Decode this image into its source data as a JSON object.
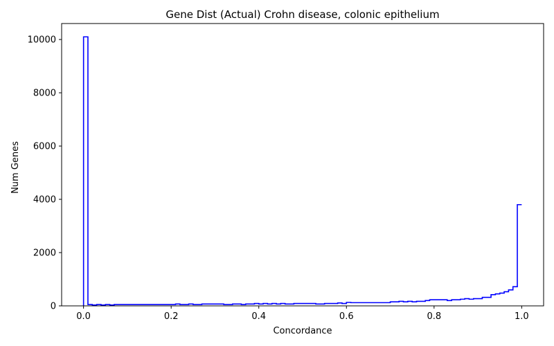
{
  "chart_data": {
    "type": "step",
    "title": "Gene Dist (Actual) Crohn disease, colonic epithelium",
    "xlabel": "Concordance",
    "ylabel": "Num Genes",
    "xlim": [
      -0.05,
      1.05
    ],
    "ylim": [
      0,
      10600
    ],
    "xticks": [
      0.0,
      0.2,
      0.4,
      0.6,
      0.8,
      1.0
    ],
    "xtick_labels": [
      "0.0",
      "0.2",
      "0.4",
      "0.6",
      "0.8",
      "1.0"
    ],
    "yticks": [
      0,
      2000,
      4000,
      6000,
      8000,
      10000
    ],
    "ytick_labels": [
      "0",
      "2000",
      "4000",
      "6000",
      "8000",
      "10000"
    ],
    "grid": false,
    "line_color": "#0000ff",
    "series": [
      {
        "bins_start": 0.0,
        "bin_width": 0.01,
        "values": [
          10100,
          50,
          30,
          50,
          30,
          50,
          30,
          50,
          50,
          50,
          50,
          50,
          50,
          50,
          50,
          50,
          50,
          50,
          50,
          50,
          50,
          70,
          50,
          50,
          70,
          50,
          50,
          70,
          70,
          70,
          70,
          70,
          50,
          50,
          70,
          70,
          50,
          70,
          70,
          90,
          70,
          90,
          70,
          90,
          70,
          90,
          70,
          70,
          90,
          90,
          90,
          90,
          90,
          70,
          70,
          90,
          90,
          90,
          110,
          90,
          130,
          120,
          120,
          120,
          120,
          120,
          120,
          120,
          120,
          120,
          150,
          150,
          170,
          150,
          170,
          150,
          170,
          170,
          200,
          230,
          230,
          230,
          230,
          200,
          230,
          230,
          250,
          270,
          250,
          270,
          270,
          320,
          320,
          420,
          450,
          480,
          530,
          600,
          720,
          3800
        ]
      }
    ]
  }
}
